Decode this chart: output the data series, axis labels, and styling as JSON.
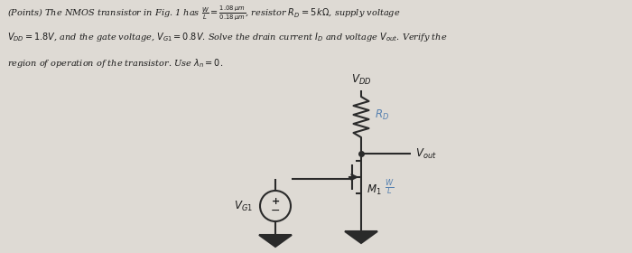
{
  "bg_color": "#dedad4",
  "text_color": "#1a1a1a",
  "blue_color": "#5580b0",
  "line_color": "#2a2a2a",
  "line1": "(Points) The NMOS transistor in Fig. 1 has $\\frac{W}{L} = \\frac{1.08\\,\\mu m}{0.18\\,\\mu m}$, resistor $R_D = 5\\,k\\Omega$, supply voltage",
  "line2": "$V_{DD} = 1.8V$, and the gate voltage, $V_{G1} = 0.8V$. Solve the drain current $I_D$ and voltage $V_{out}$. Verify the",
  "line3": "region of operation of the transistor. Use $\\lambda_n = 0$.",
  "vdd_label": "$V_{DD}$",
  "rd_label": "$R_D$",
  "vout_label": "$V_{out}$",
  "m1_label": "$M_1$",
  "wl_label": "$\\frac{W}{L}$",
  "vg1_label": "$V_{G1}$"
}
